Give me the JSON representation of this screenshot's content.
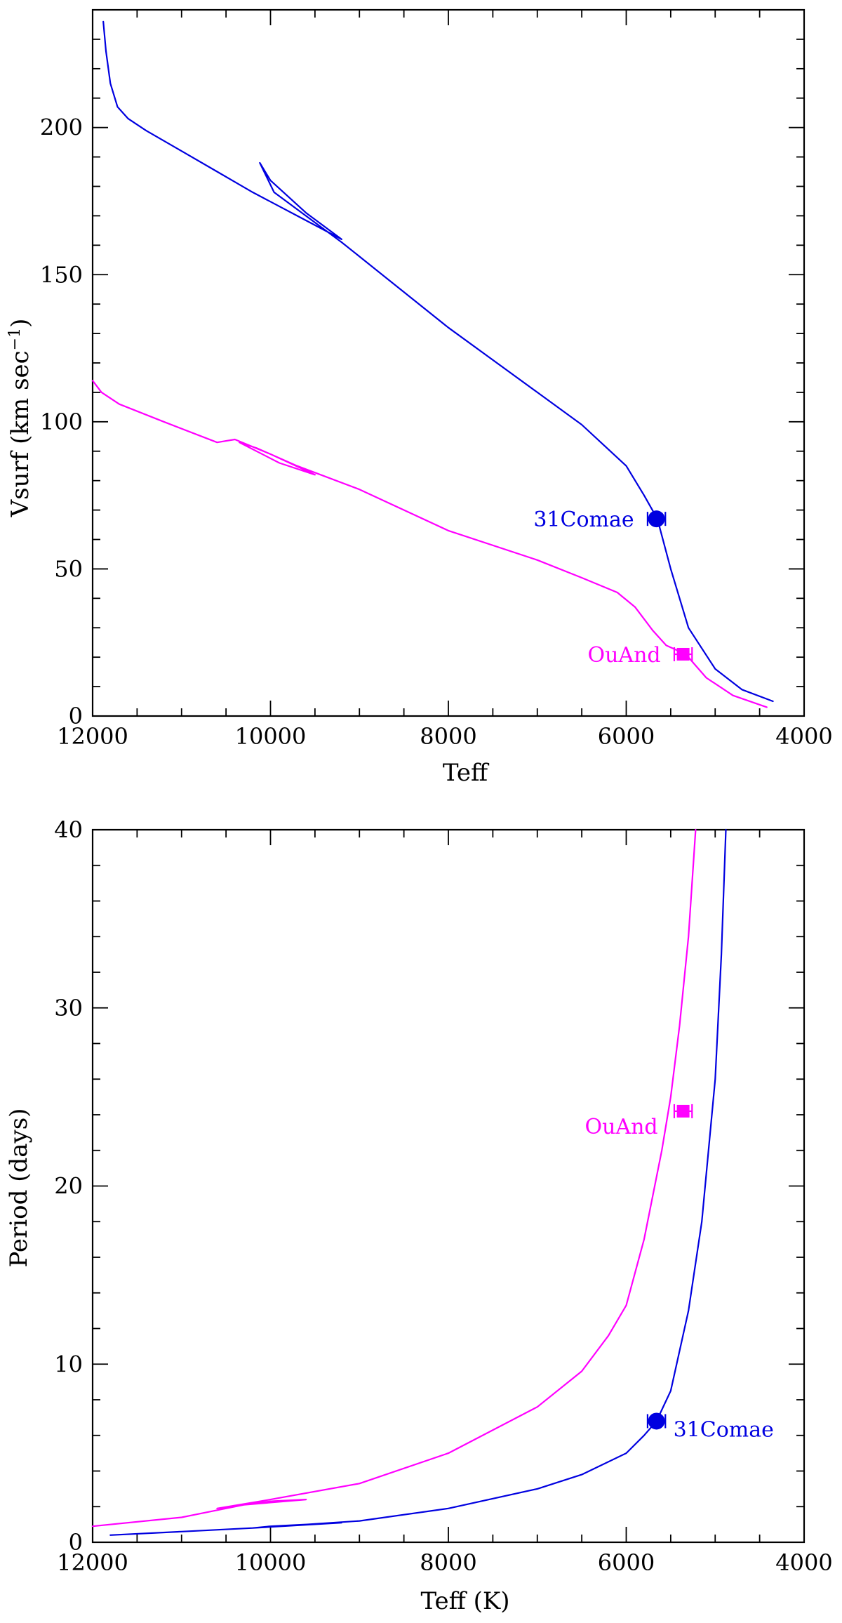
{
  "chart_data": [
    {
      "type": "line",
      "title": "",
      "xlabel": "Teff",
      "ylabel": "Vsurf (km sec",
      "ylabel_sup": "−1",
      "ylabel_close": ")",
      "xlim": [
        12000,
        4000
      ],
      "ylim": [
        0,
        240
      ],
      "x_ticks": [
        12000,
        10000,
        8000,
        6000,
        4000
      ],
      "x_tick_labels": [
        "12000",
        "10000",
        "8000",
        "6000",
        "4000"
      ],
      "x_minor_step": 500,
      "y_ticks": [
        0,
        50,
        100,
        150,
        200
      ],
      "y_tick_labels": [
        "0",
        "50",
        "100",
        "150",
        "200"
      ],
      "y_minor_step": 10,
      "series": [
        {
          "color": "#0000e0",
          "points": [
            [
              11880,
              236
            ],
            [
              11850,
              226
            ],
            [
              11800,
              215
            ],
            [
              11720,
              207
            ],
            [
              11600,
              203
            ],
            [
              11400,
              199
            ],
            [
              11000,
              192
            ],
            [
              10600,
              185
            ],
            [
              10200,
              178
            ],
            [
              9700,
              170
            ],
            [
              9200,
              162
            ],
            [
              9600,
              171
            ],
            [
              10000,
              182
            ],
            [
              10120,
              188
            ],
            [
              9960,
              178
            ],
            [
              9200,
              161
            ],
            [
              8000,
              132
            ],
            [
              7000,
              110
            ],
            [
              6500,
              99
            ],
            [
              6000,
              85
            ],
            [
              5800,
              75
            ],
            [
              5650,
              67
            ],
            [
              5500,
              50
            ],
            [
              5300,
              30
            ],
            [
              5000,
              16
            ],
            [
              4700,
              9
            ],
            [
              4350,
              5
            ]
          ]
        },
        {
          "color": "#ff00ff",
          "points": [
            [
              12000,
              114
            ],
            [
              11900,
              110
            ],
            [
              11700,
              106
            ],
            [
              11200,
              100
            ],
            [
              10600,
              93
            ],
            [
              10400,
              94
            ],
            [
              10000,
              89
            ],
            [
              9500,
              82
            ],
            [
              9900,
              86
            ],
            [
              10350,
              93
            ],
            [
              10150,
              91
            ],
            [
              9700,
              85
            ],
            [
              9000,
              77
            ],
            [
              8000,
              63
            ],
            [
              7000,
              53
            ],
            [
              6500,
              47
            ],
            [
              6100,
              42
            ],
            [
              5900,
              37
            ],
            [
              5700,
              29
            ],
            [
              5550,
              24
            ],
            [
              5330,
              21
            ],
            [
              5100,
              13
            ],
            [
              4800,
              7
            ],
            [
              4420,
              3
            ]
          ]
        }
      ],
      "observed": [
        {
          "label": "31Comae",
          "x": 5660,
          "y": 67,
          "x_err": 100,
          "marker": "circle",
          "color": "#0000e0",
          "label_side": "left"
        },
        {
          "label": "OuAnd",
          "x": 5360,
          "y": 21,
          "x_err": 100,
          "marker": "square",
          "color": "#ff00ff",
          "label_side": "left"
        }
      ]
    },
    {
      "type": "line",
      "title": "",
      "xlabel": "Teff (K)",
      "ylabel": "Period (days)",
      "xlim": [
        12000,
        4000
      ],
      "ylim": [
        0,
        40
      ],
      "x_ticks": [
        12000,
        10000,
        8000,
        6000,
        4000
      ],
      "x_tick_labels": [
        "12000",
        "10000",
        "8000",
        "6000",
        "4000"
      ],
      "x_minor_step": 500,
      "y_ticks": [
        0,
        10,
        20,
        30,
        40
      ],
      "y_tick_labels": [
        "0",
        "10",
        "20",
        "30",
        "40"
      ],
      "y_minor_step": 2,
      "series": [
        {
          "color": "#ff00ff",
          "points": [
            [
              12000,
              0.9
            ],
            [
              11000,
              1.4
            ],
            [
              10600,
              1.8
            ],
            [
              10300,
              2.1
            ],
            [
              9600,
              2.4
            ],
            [
              10000,
              2.3
            ],
            [
              10600,
              1.9
            ],
            [
              10000,
              2.4
            ],
            [
              9000,
              3.3
            ],
            [
              8000,
              5.0
            ],
            [
              7000,
              7.6
            ],
            [
              6500,
              9.6
            ],
            [
              6200,
              11.6
            ],
            [
              6000,
              13.3
            ],
            [
              5800,
              17.0
            ],
            [
              5600,
              22.0
            ],
            [
              5500,
              25.0
            ],
            [
              5400,
              29.0
            ],
            [
              5300,
              34.0
            ],
            [
              5220,
              40.0
            ]
          ]
        },
        {
          "color": "#0000e0",
          "points": [
            [
              11800,
              0.4
            ],
            [
              11000,
              0.6
            ],
            [
              10200,
              0.8
            ],
            [
              9200,
              1.1
            ],
            [
              10000,
              0.9
            ],
            [
              10200,
              0.8
            ],
            [
              9000,
              1.2
            ],
            [
              8000,
              1.9
            ],
            [
              7000,
              3.0
            ],
            [
              6500,
              3.8
            ],
            [
              6000,
              5.0
            ],
            [
              5800,
              6.0
            ],
            [
              5660,
              6.8
            ],
            [
              5500,
              8.5
            ],
            [
              5300,
              13.0
            ],
            [
              5150,
              18.0
            ],
            [
              5000,
              26.0
            ],
            [
              4930,
              33.0
            ],
            [
              4880,
              40.0
            ]
          ]
        }
      ],
      "observed": [
        {
          "label": "OuAnd",
          "x": 5360,
          "y": 24.2,
          "x_err": 100,
          "marker": "square",
          "color": "#ff00ff",
          "label_side": "left-below"
        },
        {
          "label": "31Comae",
          "x": 5660,
          "y": 6.8,
          "x_err": 100,
          "marker": "circle",
          "color": "#0000e0",
          "label_side": "right-below"
        }
      ]
    }
  ]
}
